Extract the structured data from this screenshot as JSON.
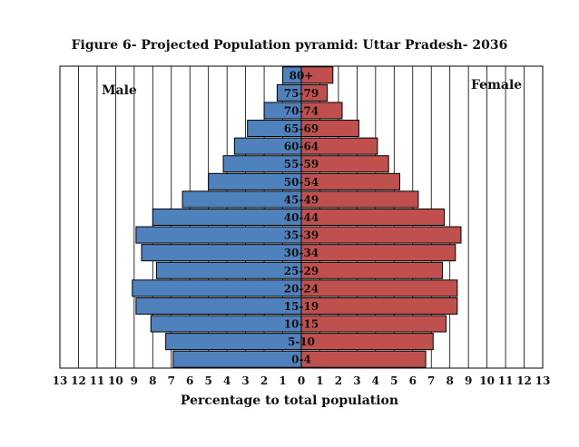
{
  "chart_data": {
    "type": "bar",
    "title": "Figure 6- Projected Population pyramid: Uttar Pradesh- 2036",
    "xlabel": "Percentage to total population",
    "ylabel": "",
    "xlim": [
      -13,
      13
    ],
    "x_ticks": [
      13,
      12,
      11,
      10,
      9,
      8,
      7,
      6,
      5,
      4,
      3,
      2,
      1,
      0,
      1,
      2,
      3,
      4,
      5,
      6,
      7,
      8,
      9,
      10,
      11,
      12,
      13
    ],
    "grid": true,
    "categories": [
      "0-4",
      "5-10",
      "10-15",
      "15-19",
      "20-24",
      "25-29",
      "30-34",
      "35-39",
      "40-44",
      "45-49",
      "50-54",
      "55-59",
      "60-64",
      "65-69",
      "70-74",
      "75-79",
      "80+"
    ],
    "series": [
      {
        "name": "Male",
        "color": "#4f81bd",
        "values": [
          6.9,
          7.3,
          8.1,
          8.9,
          9.1,
          7.8,
          8.6,
          8.9,
          8.0,
          6.4,
          5.0,
          4.2,
          3.6,
          2.9,
          2.0,
          1.3,
          1.0
        ]
      },
      {
        "name": "Female",
        "color": "#c0504d",
        "values": [
          6.7,
          7.1,
          7.8,
          8.4,
          8.4,
          7.6,
          8.3,
          8.6,
          7.7,
          6.3,
          5.3,
          4.7,
          4.1,
          3.1,
          2.2,
          1.4,
          1.7
        ]
      }
    ]
  }
}
